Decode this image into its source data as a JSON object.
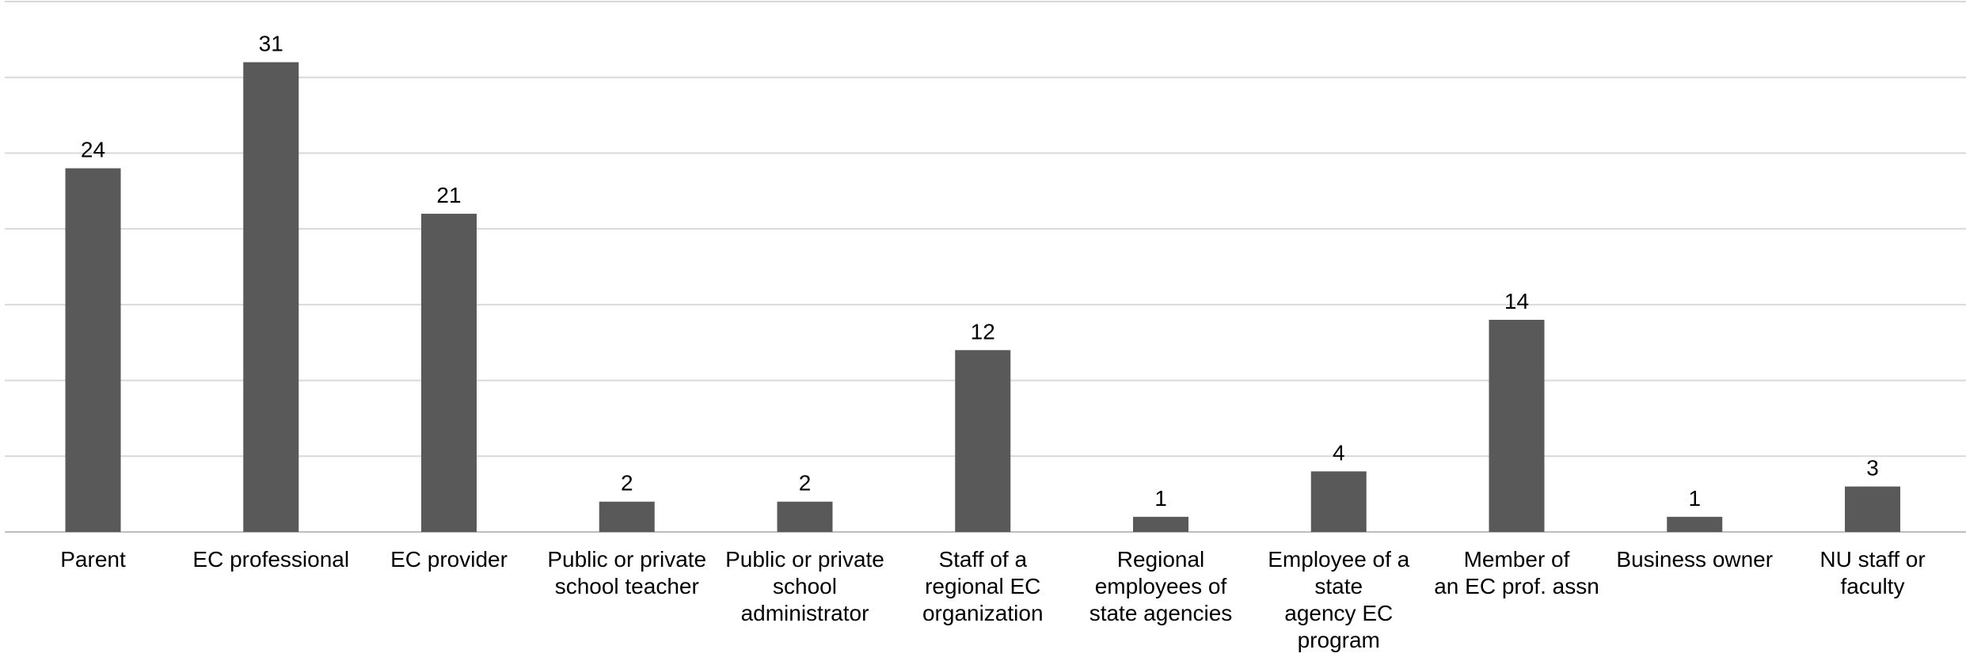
{
  "chart_data": {
    "type": "bar",
    "title": "",
    "xlabel": "",
    "ylabel": "",
    "ylim": [
      0,
      35
    ],
    "grid": true,
    "y_gridline_step": 5,
    "bar_color": "#595959",
    "categories": [
      [
        "Parent"
      ],
      [
        "EC professional"
      ],
      [
        "EC provider"
      ],
      [
        "Public or private",
        "school teacher"
      ],
      [
        "Public or private",
        "school",
        "administrator"
      ],
      [
        "Staff of a",
        "regional EC",
        "organization"
      ],
      [
        "Regional",
        "employees  of",
        "state agencies"
      ],
      [
        "Employee of a",
        "state",
        "agency EC",
        "program"
      ],
      [
        "Member of",
        "an EC prof. assn"
      ],
      [
        "Business owner"
      ],
      [
        "NU staff or",
        "faculty"
      ]
    ],
    "values": [
      24,
      31,
      21,
      2,
      2,
      12,
      1,
      4,
      14,
      1,
      3
    ]
  }
}
